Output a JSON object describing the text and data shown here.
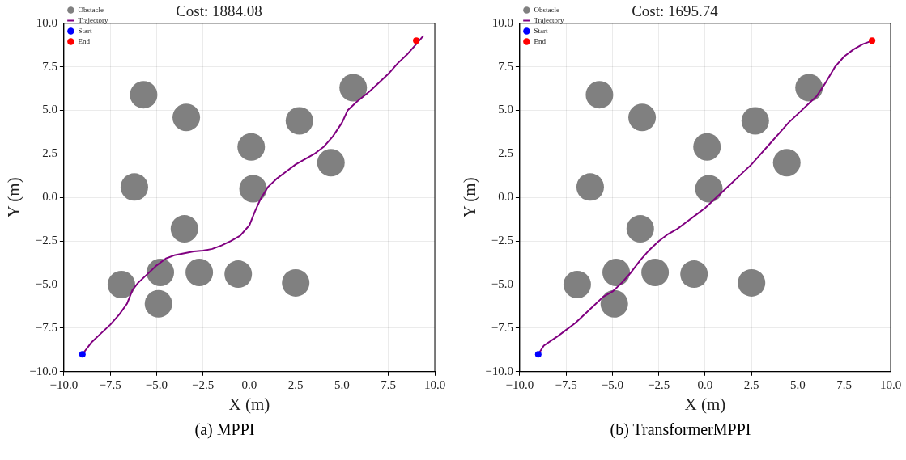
{
  "chart_data": [
    {
      "type": "scatter",
      "title": "Cost: 1884.08",
      "xlabel": "X (m)",
      "ylabel": "Y (m)",
      "xlim": [
        -10,
        10
      ],
      "ylim": [
        -10,
        10
      ],
      "xticks": [
        {
          "value": -10,
          "label": "−10.0"
        },
        {
          "value": -7.5,
          "label": "−7.5"
        },
        {
          "value": -5,
          "label": "−5.0"
        },
        {
          "value": -2.5,
          "label": "−2.5"
        },
        {
          "value": 0,
          "label": "0.0"
        },
        {
          "value": 2.5,
          "label": "2.5"
        },
        {
          "value": 5,
          "label": "5.0"
        },
        {
          "value": 7.5,
          "label": "7.5"
        },
        {
          "value": 10,
          "label": "10.0"
        }
      ],
      "yticks": [
        {
          "value": -10,
          "label": "−10.0"
        },
        {
          "value": -7.5,
          "label": "−7.5"
        },
        {
          "value": -5,
          "label": "−5.0"
        },
        {
          "value": -2.5,
          "label": "−2.5"
        },
        {
          "value": 0,
          "label": "0.0"
        },
        {
          "value": 2.5,
          "label": "2.5"
        },
        {
          "value": 5,
          "label": "5.0"
        },
        {
          "value": 7.5,
          "label": "7.5"
        },
        {
          "value": 10,
          "label": "10.0"
        }
      ],
      "grid": true,
      "legend": "top left",
      "annotations": [
        "(a) MPPI"
      ],
      "series": [
        {
          "name": "Obstacle",
          "type": "scatter",
          "marker": "circle",
          "color": "#808080",
          "x": [
            -5.7,
            -3.4,
            0.1,
            2.7,
            5.6,
            4.4,
            -6.2,
            0.2,
            -3.5,
            -6.9,
            -4.8,
            -2.7,
            -0.6,
            2.5,
            -4.9
          ],
          "values": [
            5.9,
            4.6,
            2.9,
            4.4,
            6.3,
            2.0,
            0.6,
            0.5,
            -1.8,
            -5.0,
            -4.3,
            -4.3,
            -4.4,
            -4.9,
            -6.1
          ]
        },
        {
          "name": "Trajectory",
          "type": "line",
          "marker": "none",
          "color": "#800080",
          "x": [
            -9,
            -8.5,
            -8,
            -7.5,
            -7,
            -6.6,
            -6.3,
            -6,
            -5.5,
            -5,
            -4.5,
            -4,
            -3.5,
            -3,
            -2.5,
            -2,
            -1.5,
            -1,
            -0.5,
            0,
            0.3,
            0.6,
            1,
            1.5,
            2,
            2.5,
            3,
            3.5,
            4,
            4.5,
            5,
            5.3,
            5.8,
            6.5,
            7,
            7.5,
            8,
            8.5,
            9,
            9.4
          ],
          "values": [
            -9,
            -8.3,
            -7.8,
            -7.3,
            -6.7,
            -6.1,
            -5.3,
            -4.9,
            -4.4,
            -3.9,
            -3.5,
            -3.3,
            -3.2,
            -3.1,
            -3.05,
            -2.95,
            -2.75,
            -2.5,
            -2.2,
            -1.6,
            -0.8,
            -0.1,
            0.6,
            1.1,
            1.5,
            1.9,
            2.2,
            2.5,
            2.9,
            3.5,
            4.3,
            5.0,
            5.5,
            6.1,
            6.6,
            7.1,
            7.7,
            8.2,
            8.8,
            9.3
          ]
        },
        {
          "name": "Start",
          "type": "scatter",
          "marker": "circle",
          "color": "#0000ff",
          "x": [
            -9
          ],
          "values": [
            -9
          ]
        },
        {
          "name": "End",
          "type": "scatter",
          "marker": "circle",
          "color": "#ff0000",
          "x": [
            9
          ],
          "values": [
            9
          ]
        }
      ]
    },
    {
      "type": "scatter",
      "title": "Cost: 1695.74",
      "xlabel": "X (m)",
      "ylabel": "Y (m)",
      "xlim": [
        -10,
        10
      ],
      "ylim": [
        -10,
        10
      ],
      "xticks": [
        {
          "value": -10,
          "label": "−10.0"
        },
        {
          "value": -7.5,
          "label": "−7.5"
        },
        {
          "value": -5,
          "label": "−5.0"
        },
        {
          "value": -2.5,
          "label": "−2.5"
        },
        {
          "value": 0,
          "label": "0.0"
        },
        {
          "value": 2.5,
          "label": "2.5"
        },
        {
          "value": 5,
          "label": "5.0"
        },
        {
          "value": 7.5,
          "label": "7.5"
        },
        {
          "value": 10,
          "label": "10.0"
        }
      ],
      "yticks": [
        {
          "value": -10,
          "label": "−10.0"
        },
        {
          "value": -7.5,
          "label": "−7.5"
        },
        {
          "value": -5,
          "label": "−5.0"
        },
        {
          "value": -2.5,
          "label": "−2.5"
        },
        {
          "value": 0,
          "label": "0.0"
        },
        {
          "value": 2.5,
          "label": "2.5"
        },
        {
          "value": 5,
          "label": "5.0"
        },
        {
          "value": 7.5,
          "label": "7.5"
        },
        {
          "value": 10,
          "label": "10.0"
        }
      ],
      "grid": true,
      "legend": "top left",
      "annotations": [
        "(b) TransformerMPPI"
      ],
      "series": [
        {
          "name": "Obstacle",
          "type": "scatter",
          "marker": "circle",
          "color": "#808080",
          "x": [
            -5.7,
            -3.4,
            0.1,
            2.7,
            5.6,
            4.4,
            -6.2,
            0.2,
            -3.5,
            -6.9,
            -4.8,
            -2.7,
            -0.6,
            2.5,
            -4.9
          ],
          "values": [
            5.9,
            4.6,
            2.9,
            4.4,
            6.3,
            2.0,
            0.6,
            0.5,
            -1.8,
            -5.0,
            -4.3,
            -4.3,
            -4.4,
            -4.9,
            -6.1
          ]
        },
        {
          "name": "Trajectory",
          "type": "line",
          "marker": "none",
          "color": "#800080",
          "x": [
            -9,
            -8.7,
            -8,
            -7.5,
            -7,
            -6.5,
            -6,
            -5.5,
            -5,
            -4.5,
            -4,
            -3.5,
            -3,
            -2.5,
            -2,
            -1.5,
            -1,
            -0.5,
            0,
            0.5,
            1,
            1.5,
            2,
            2.5,
            3,
            3.5,
            4,
            4.5,
            5,
            5.5,
            6,
            6.5,
            7,
            7.5,
            8,
            8.5,
            9
          ],
          "values": [
            -9,
            -8.5,
            -8,
            -7.6,
            -7.2,
            -6.7,
            -6.2,
            -5.7,
            -5.4,
            -4.9,
            -4.3,
            -3.6,
            -3.0,
            -2.5,
            -2.1,
            -1.8,
            -1.4,
            -1.0,
            -0.6,
            -0.1,
            0.4,
            0.9,
            1.4,
            1.9,
            2.5,
            3.1,
            3.7,
            4.3,
            4.8,
            5.3,
            5.8,
            6.6,
            7.5,
            8.1,
            8.5,
            8.8,
            9
          ]
        },
        {
          "name": "Start",
          "type": "scatter",
          "marker": "circle",
          "color": "#0000ff",
          "x": [
            -9
          ],
          "values": [
            -9
          ]
        },
        {
          "name": "End",
          "type": "scatter",
          "marker": "circle",
          "color": "#ff0000",
          "x": [
            9
          ],
          "values": [
            9
          ]
        }
      ]
    }
  ]
}
